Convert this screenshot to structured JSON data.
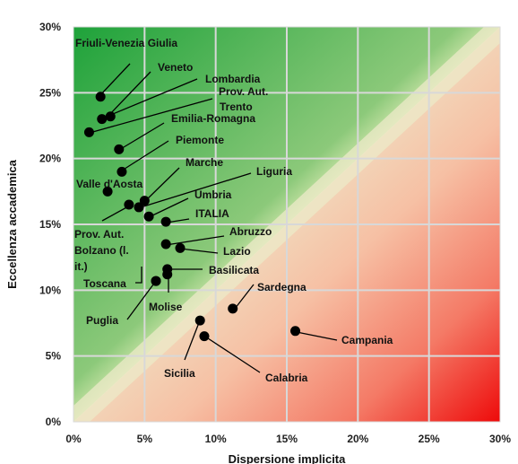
{
  "chart_data": {
    "type": "scatter",
    "title": "",
    "xlabel": "Dispersione implicita",
    "ylabel": "Eccellenza accademica",
    "xlim": [
      0,
      30
    ],
    "ylim": [
      0,
      30
    ],
    "x_ticks": [
      "0%",
      "5%",
      "10%",
      "15%",
      "20%",
      "25%",
      "30%"
    ],
    "y_ticks": [
      "0%",
      "5%",
      "10%",
      "15%",
      "20%",
      "25%",
      "30%"
    ],
    "grid": true,
    "legend": "none",
    "background": {
      "upper_left_region_color": "#2ca02c",
      "lower_right_region_color": "#ff1a1a",
      "diagonal_band_color": "#e8e8c8",
      "diagonal": "y = x"
    },
    "marker_color": "#000000",
    "points": [
      {
        "name": "Friuli-Venezia Giulia",
        "x": 1.9,
        "y": 24.7
      },
      {
        "name": "Veneto",
        "x": 2.6,
        "y": 23.2
      },
      {
        "name": "Lombardia",
        "x": 2.0,
        "y": 23.0
      },
      {
        "name": "Prov. Aut. Trento",
        "x": 1.1,
        "y": 22.0
      },
      {
        "name": "Emilia-Romagna",
        "x": 3.2,
        "y": 20.7
      },
      {
        "name": "Piemonte",
        "x": 3.4,
        "y": 19.0
      },
      {
        "name": "Valle d'Aosta",
        "x": 2.4,
        "y": 17.5
      },
      {
        "name": "Marche",
        "x": 5.0,
        "y": 16.8
      },
      {
        "name": "Liguria",
        "x": 4.6,
        "y": 16.3
      },
      {
        "name": "Prov. Aut. Bolzano (l. it.)",
        "x": 3.9,
        "y": 16.5
      },
      {
        "name": "Umbria",
        "x": 5.3,
        "y": 15.6
      },
      {
        "name": "ITALIA",
        "x": 6.5,
        "y": 15.2
      },
      {
        "name": "Abruzzo",
        "x": 6.5,
        "y": 13.5
      },
      {
        "name": "Lazio",
        "x": 7.5,
        "y": 13.2
      },
      {
        "name": "Basilicata",
        "x": 6.6,
        "y": 11.6
      },
      {
        "name": "Molise",
        "x": 6.6,
        "y": 11.2
      },
      {
        "name": "Toscana",
        "x": 5.8,
        "y": 10.7
      },
      {
        "name": "Puglia",
        "x": 5.8,
        "y": 10.7
      },
      {
        "name": "Sardegna",
        "x": 11.2,
        "y": 8.6
      },
      {
        "name": "Sicilia",
        "x": 8.9,
        "y": 7.7
      },
      {
        "name": "Calabria",
        "x": 9.2,
        "y": 6.5
      },
      {
        "name": "Campania",
        "x": 15.6,
        "y": 6.9
      }
    ]
  }
}
